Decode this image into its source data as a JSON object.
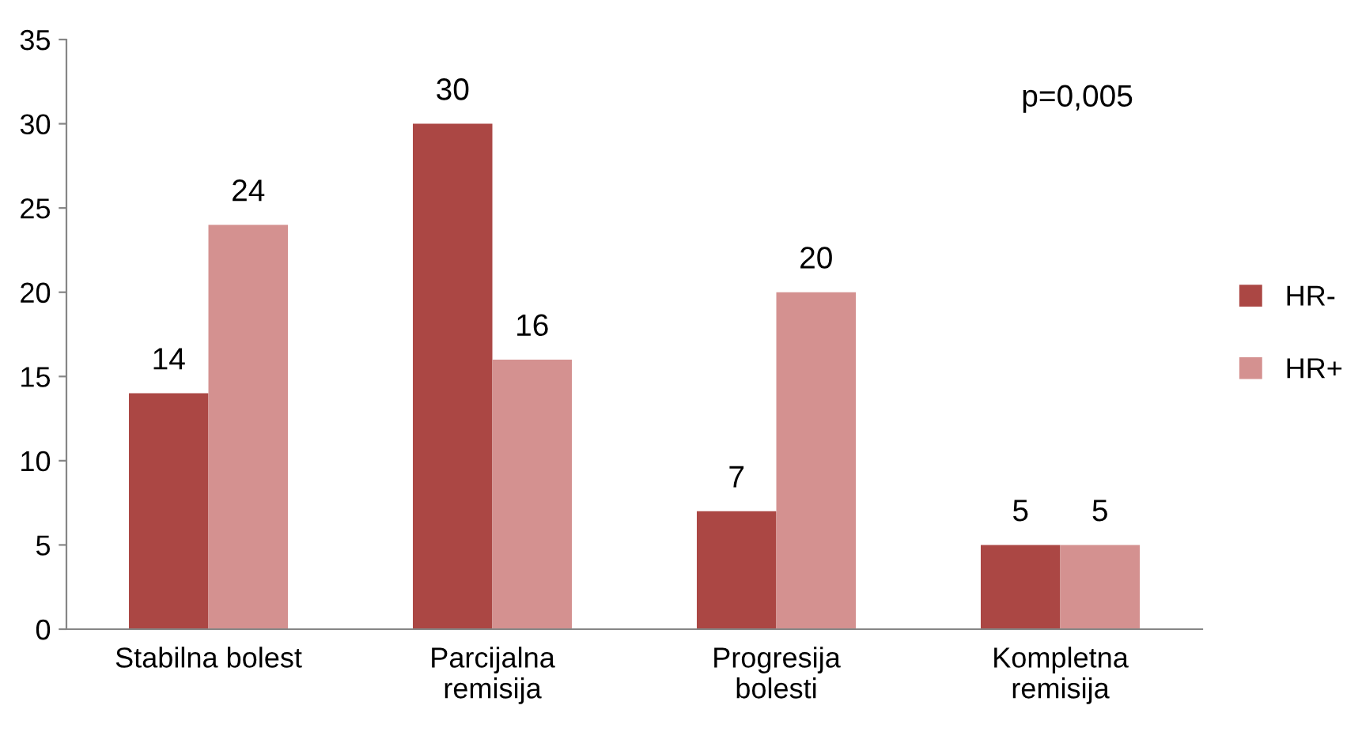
{
  "chart_data": {
    "type": "bar",
    "categories": [
      "Stabilna bolest",
      "Parcijalna\nremisija",
      "Progresija\nbolesti",
      "Kompletna\nremisija"
    ],
    "series": [
      {
        "name": "HR-",
        "color": "#ab4744",
        "values": [
          14,
          30,
          7,
          5
        ]
      },
      {
        "name": "HR+",
        "color": "#d49190",
        "values": [
          24,
          16,
          20,
          5
        ]
      }
    ],
    "ylim": [
      0,
      35
    ],
    "yticks": [
      0,
      5,
      10,
      15,
      20,
      25,
      30,
      35
    ],
    "grid": false,
    "legend": "right",
    "data_labels": true,
    "annotations": [
      "p=0,005"
    ]
  }
}
